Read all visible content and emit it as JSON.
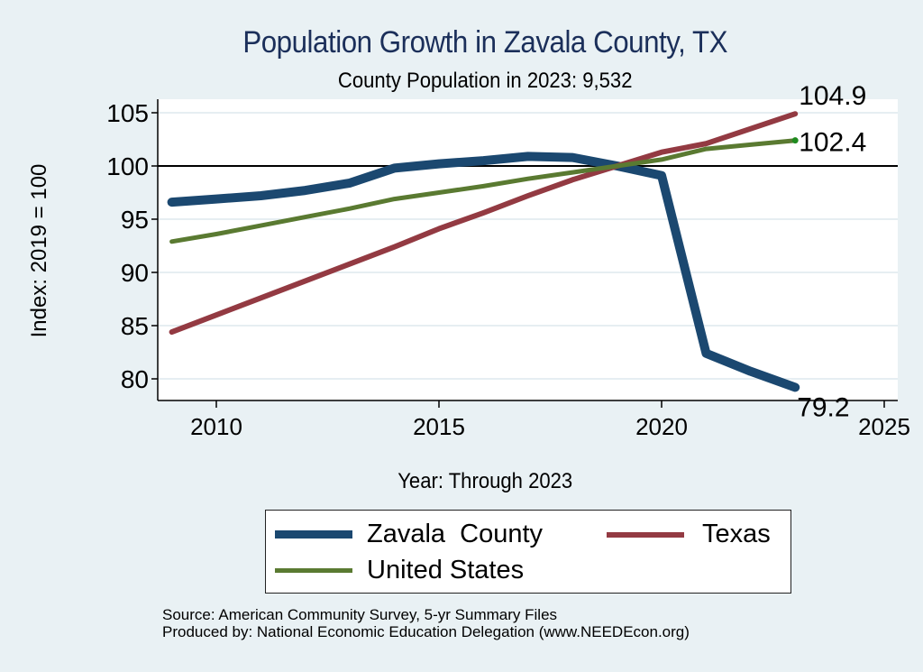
{
  "chart_data": {
    "type": "line",
    "title": "Population Growth in Zavala County, TX",
    "subtitle": "County Population in 2023: 9,532",
    "xlabel": "Year: Through 2023",
    "ylabel": "Index: 2019 = 100",
    "xlim": [
      2009,
      2025
    ],
    "ylim": [
      79,
      106
    ],
    "x_ticks": [
      2010,
      2015,
      2020,
      2025
    ],
    "y_ticks": [
      80,
      85,
      90,
      95,
      100,
      105
    ],
    "reference_line": 100,
    "grid": true,
    "legend_position": "bottom",
    "x": [
      2009,
      2010,
      2011,
      2012,
      2013,
      2014,
      2015,
      2016,
      2017,
      2018,
      2019,
      2020,
      2021,
      2022,
      2023
    ],
    "series": [
      {
        "name": "Zavala  County",
        "color": "#1b4870",
        "values": [
          96.6,
          96.9,
          97.2,
          97.7,
          98.4,
          99.8,
          100.2,
          100.5,
          100.9,
          100.8,
          100.0,
          99.1,
          82.4,
          80.7,
          79.2
        ],
        "end_label": "79.2"
      },
      {
        "name": "Texas",
        "color": "#933a42",
        "values": [
          84.4,
          86.0,
          87.6,
          89.2,
          90.8,
          92.4,
          94.1,
          95.6,
          97.2,
          98.7,
          100.0,
          101.3,
          102.1,
          103.5,
          104.9
        ],
        "end_label": "104.9"
      },
      {
        "name": "United States",
        "color": "#5a7a31",
        "values": [
          92.9,
          93.6,
          94.4,
          95.2,
          96.0,
          96.9,
          97.5,
          98.1,
          98.8,
          99.4,
          100.0,
          100.6,
          101.6,
          102.0,
          102.4
        ],
        "end_label": "102.4"
      }
    ]
  },
  "footer": {
    "source": "Source: American Community Survey, 5-yr Summary Files",
    "produced_by": "Produced by: National Economic Education Delegation (www.NEEDEcon.org)"
  }
}
